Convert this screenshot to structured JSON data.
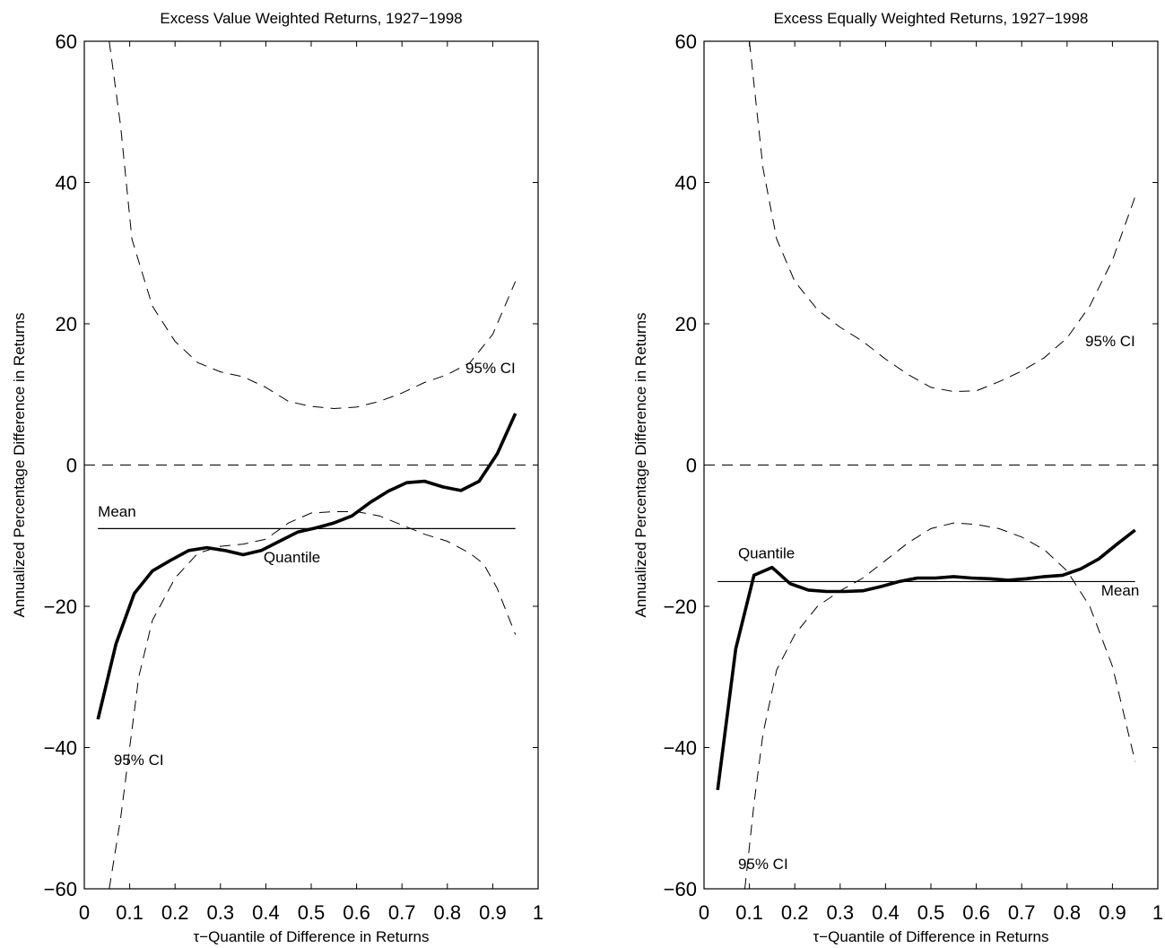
{
  "chart_data": [
    {
      "type": "line",
      "title": "Excess Value Weighted Returns, 1927−1998",
      "xlabel": "τ−Quantile of Difference in Returns",
      "ylabel": "Annualized Percentage Difference in Returns",
      "xlim": [
        0,
        1
      ],
      "ylim": [
        -60,
        60
      ],
      "xticks": [
        0,
        0.1,
        0.2,
        0.3,
        0.4,
        0.5,
        0.6,
        0.7,
        0.8,
        0.9,
        1
      ],
      "xtick_labels": [
        "0",
        "0.1",
        "0.2",
        "0.3",
        "0.4",
        "0.5",
        "0.6",
        "0.7",
        "0.8",
        "0.9",
        "1"
      ],
      "yticks": [
        -60,
        -40,
        -20,
        0,
        20,
        40,
        60
      ],
      "ytick_labels": [
        "−60",
        "−40",
        "−20",
        "0",
        "20",
        "40",
        "60"
      ],
      "grid": false,
      "mean": -9,
      "series": [
        {
          "role": "quantile",
          "x": [
            0.03,
            0.07,
            0.11,
            0.15,
            0.19,
            0.23,
            0.27,
            0.31,
            0.35,
            0.39,
            0.43,
            0.47,
            0.51,
            0.55,
            0.59,
            0.63,
            0.67,
            0.71,
            0.75,
            0.79,
            0.83,
            0.87,
            0.91,
            0.95
          ],
          "y": [
            -36,
            -25.3,
            -18.2,
            -15,
            -13.5,
            -12.1,
            -11.7,
            -12.1,
            -12.7,
            -12.1,
            -10.8,
            -9.5,
            -8.9,
            -8.2,
            -7.2,
            -5.3,
            -3.7,
            -2.5,
            -2.3,
            -3.1,
            -3.6,
            -2.3,
            1.6,
            7.3
          ]
        },
        {
          "role": "ci-upper",
          "x": [
            0.055,
            0.08,
            0.105,
            0.15,
            0.2,
            0.25,
            0.3,
            0.35,
            0.4,
            0.45,
            0.5,
            0.55,
            0.6,
            0.65,
            0.7,
            0.75,
            0.8,
            0.85,
            0.9,
            0.95
          ],
          "y": [
            60,
            48,
            32,
            22.5,
            17.5,
            14.5,
            13.2,
            12.5,
            11,
            9,
            8.3,
            8,
            8.2,
            9,
            10.2,
            11.7,
            12.8,
            14.5,
            18.5,
            26
          ]
        },
        {
          "role": "ci-lower",
          "x": [
            0.055,
            0.08,
            0.1,
            0.12,
            0.15,
            0.2,
            0.25,
            0.3,
            0.35,
            0.4,
            0.45,
            0.5,
            0.55,
            0.6,
            0.65,
            0.7,
            0.75,
            0.8,
            0.85,
            0.88,
            0.91,
            0.95
          ],
          "y": [
            -60,
            -50,
            -40,
            -30,
            -22,
            -16,
            -12.5,
            -11.5,
            -11.2,
            -10.5,
            -8.2,
            -6.8,
            -6.6,
            -6.6,
            -7.2,
            -8.5,
            -9.8,
            -10.8,
            -12.5,
            -14,
            -17.5,
            -24
          ]
        }
      ],
      "annotations": [
        {
          "text": "Mean",
          "x": 0.03,
          "y": -7.3
        },
        {
          "text": "Quantile",
          "x": 0.395,
          "y": -13.8
        },
        {
          "text": "95% CI",
          "x": 0.84,
          "y": 13.0
        },
        {
          "text": "95% CI",
          "x": 0.065,
          "y": -42.5
        }
      ]
    },
    {
      "type": "line",
      "title": "Excess Equally Weighted Returns, 1927−1998",
      "xlabel": "τ−Quantile of Difference in Returns",
      "ylabel": "Annualized Percentage Difference in Returns",
      "xlim": [
        0,
        1
      ],
      "ylim": [
        -60,
        60
      ],
      "xticks": [
        0,
        0.1,
        0.2,
        0.3,
        0.4,
        0.5,
        0.6,
        0.7,
        0.8,
        0.9,
        1
      ],
      "xtick_labels": [
        "0",
        "0.1",
        "0.2",
        "0.3",
        "0.4",
        "0.5",
        "0.6",
        "0.7",
        "0.8",
        "0.9",
        "1"
      ],
      "yticks": [
        -60,
        -40,
        -20,
        0,
        20,
        40,
        60
      ],
      "ytick_labels": [
        "−60",
        "−40",
        "−20",
        "0",
        "20",
        "40",
        "60"
      ],
      "grid": false,
      "mean": -16.5,
      "series": [
        {
          "role": "quantile",
          "x": [
            0.03,
            0.07,
            0.11,
            0.15,
            0.19,
            0.23,
            0.27,
            0.31,
            0.35,
            0.39,
            0.43,
            0.47,
            0.51,
            0.55,
            0.59,
            0.63,
            0.67,
            0.71,
            0.75,
            0.79,
            0.83,
            0.87,
            0.91,
            0.95
          ],
          "y": [
            -46,
            -26,
            -15.6,
            -14.5,
            -16.8,
            -17.7,
            -17.9,
            -17.9,
            -17.8,
            -17.2,
            -16.5,
            -16,
            -16,
            -15.8,
            -16,
            -16.1,
            -16.3,
            -16.1,
            -15.8,
            -15.6,
            -14.7,
            -13.3,
            -11.2,
            -9.2
          ]
        },
        {
          "role": "ci-upper",
          "x": [
            0.1,
            0.13,
            0.16,
            0.2,
            0.25,
            0.3,
            0.35,
            0.4,
            0.45,
            0.5,
            0.55,
            0.6,
            0.65,
            0.7,
            0.75,
            0.8,
            0.85,
            0.9,
            0.95
          ],
          "y": [
            60,
            42,
            32,
            26,
            22,
            19.5,
            17.5,
            15,
            12.8,
            11,
            10.4,
            10.5,
            11.8,
            13.3,
            15.2,
            18,
            22.5,
            29,
            38
          ]
        },
        {
          "role": "ci-lower",
          "x": [
            0.09,
            0.11,
            0.13,
            0.16,
            0.2,
            0.25,
            0.3,
            0.35,
            0.4,
            0.45,
            0.5,
            0.55,
            0.6,
            0.65,
            0.7,
            0.75,
            0.8,
            0.85,
            0.9,
            0.95
          ],
          "y": [
            -60,
            -48,
            -38,
            -29,
            -24,
            -20,
            -17.8,
            -16,
            -13.5,
            -11,
            -9,
            -8.2,
            -8.4,
            -9,
            -10.2,
            -12,
            -15,
            -20,
            -28.5,
            -42
          ]
        }
      ],
      "annotations": [
        {
          "text": "Quantile",
          "x": 0.075,
          "y": -13.2
        },
        {
          "text": "Mean",
          "x": 0.875,
          "y": -18.5
        },
        {
          "text": "95% CI",
          "x": 0.84,
          "y": 16.8
        },
        {
          "text": "95% CI",
          "x": 0.075,
          "y": -57.2
        }
      ]
    }
  ]
}
